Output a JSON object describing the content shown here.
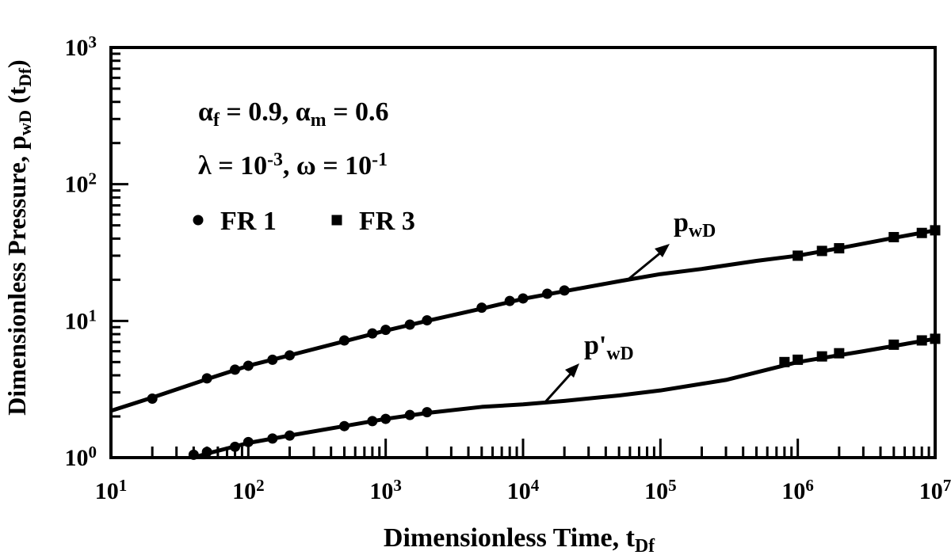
{
  "chart_data": {
    "type": "line",
    "log_x": true,
    "log_y": true,
    "xlim": [
      10,
      10000000
    ],
    "ylim": [
      1,
      1000
    ],
    "xticks": [
      {
        "value": 10,
        "label": "10",
        "power": "1"
      },
      {
        "value": 100,
        "label": "10",
        "power": "2"
      },
      {
        "value": 1000,
        "label": "10",
        "power": "3"
      },
      {
        "value": 10000,
        "label": "10",
        "power": "4"
      },
      {
        "value": 100000,
        "label": "10",
        "power": "5"
      },
      {
        "value": 1000000,
        "label": "10",
        "power": "6"
      },
      {
        "value": 10000000,
        "label": "10",
        "power": "7"
      }
    ],
    "yticks": [
      {
        "value": 1,
        "label": "10",
        "power": "0"
      },
      {
        "value": 10,
        "label": "10",
        "power": "1"
      },
      {
        "value": 100,
        "label": "10",
        "power": "2"
      },
      {
        "value": 1000,
        "label": "10",
        "power": "3"
      }
    ],
    "minor_ticks": true,
    "x_label": [
      {
        "text": "Dimensionless Time, t"
      },
      {
        "text": "Df",
        "shift": "sub"
      }
    ],
    "y_label": [
      {
        "text": "Dimensionless Pressure, p"
      },
      {
        "text": "wD",
        "shift": "sub"
      },
      {
        "text": " (t"
      },
      {
        "text": "Df",
        "shift": "sub"
      },
      {
        "text": ")"
      }
    ],
    "annotations": [
      [
        {
          "text": "α"
        },
        {
          "text": "f",
          "shift": "sub"
        },
        {
          "text": " = 0.9, α"
        },
        {
          "text": "m",
          "shift": "sub"
        },
        {
          "text": " = 0.6"
        }
      ],
      [
        {
          "text": "λ = 10"
        },
        {
          "text": "-3",
          "shift": "super"
        },
        {
          "text": ",  ω = 10"
        },
        {
          "text": "-1",
          "shift": "super"
        }
      ]
    ],
    "curve_labels": [
      [
        {
          "text": "p"
        },
        {
          "text": "wD",
          "shift": "sub"
        }
      ],
      [
        {
          "text": "p'"
        },
        {
          "text": "wD",
          "shift": "sub"
        }
      ]
    ],
    "legend": [
      {
        "name": "FR 1",
        "marker": "circle"
      },
      {
        "name": "FR 3",
        "marker": "square"
      }
    ],
    "color": "#000000",
    "series": [
      {
        "kind": "line",
        "x": [
          10,
          20,
          50,
          100,
          200,
          500,
          1000,
          2000,
          5000,
          10000,
          20000,
          50000,
          100000,
          200000,
          500000,
          1000000,
          2000000,
          5000000,
          10000000
        ],
        "values": [
          2.2,
          2.75,
          3.75,
          4.7,
          5.6,
          7.1,
          8.5,
          10,
          12.3,
          14.5,
          16.5,
          19.5,
          22,
          24,
          27.5,
          30,
          34,
          40.5,
          46
        ]
      },
      {
        "kind": "line",
        "x": [
          40,
          50,
          100,
          200,
          500,
          1000,
          2000,
          5000,
          10000,
          20000,
          50000,
          100000,
          300000,
          1000000,
          3000000,
          10000000
        ],
        "values": [
          1.0,
          1.07,
          1.28,
          1.45,
          1.7,
          1.92,
          2.12,
          2.35,
          2.45,
          2.6,
          2.85,
          3.1,
          3.7,
          5.0,
          6.0,
          7.4
        ]
      },
      {
        "kind": "points",
        "legend": 0,
        "x": [
          20,
          50,
          80,
          100,
          150,
          200,
          500,
          800,
          1000,
          1500,
          2000,
          5000,
          8000,
          10000,
          15000,
          20000
        ],
        "values": [
          2.7,
          3.8,
          4.4,
          4.7,
          5.2,
          5.6,
          7.2,
          8.1,
          8.6,
          9.4,
          10.1,
          12.5,
          14,
          14.6,
          15.8,
          16.7
        ]
      },
      {
        "kind": "points",
        "legend": 0,
        "x": [
          40,
          50,
          80,
          100,
          150,
          200,
          500,
          800,
          1000,
          1500,
          2000
        ],
        "values": [
          1.05,
          1.1,
          1.2,
          1.3,
          1.38,
          1.45,
          1.7,
          1.85,
          1.92,
          2.05,
          2.15
        ]
      },
      {
        "kind": "points",
        "legend": 1,
        "x": [
          1000000,
          1500000,
          2000000,
          5000000,
          8000000,
          10000000
        ],
        "values": [
          30,
          32.5,
          34,
          41,
          44,
          46
        ]
      },
      {
        "kind": "points",
        "legend": 1,
        "x": [
          800000,
          1000000,
          1500000,
          2000000,
          5000000,
          8000000,
          10000000
        ],
        "values": [
          5.0,
          5.2,
          5.5,
          5.8,
          6.7,
          7.2,
          7.4
        ]
      }
    ]
  }
}
